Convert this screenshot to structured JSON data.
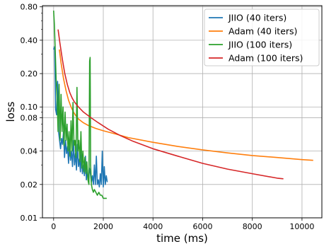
{
  "chart_data": {
    "type": "line",
    "title": "",
    "xlabel": "time (ms)",
    "ylabel": "loss",
    "xlim": [
      -450,
      10800
    ],
    "ylim": [
      0.01,
      0.82
    ],
    "yscale": "log",
    "grid": true,
    "legend_position": "top-right",
    "x_ticks": [
      0,
      2000,
      4000,
      6000,
      8000,
      10000
    ],
    "x_tick_labels": [
      "0",
      "2000",
      "4000",
      "6000",
      "8000",
      "10000"
    ],
    "y_ticks": [
      0.01,
      0.02,
      0.04,
      0.08,
      0.1,
      0.2,
      0.4,
      0.8
    ],
    "y_tick_labels": [
      "0.01",
      "0.02",
      "0.04",
      "0.08",
      "0.10",
      "0.20",
      "0.40",
      "0.80"
    ],
    "series": [
      {
        "name": "JIIO (40 iters)",
        "color": "#1f77b4",
        "x": [
          0,
          40,
          80,
          120,
          160,
          200,
          240,
          280,
          320,
          360,
          400,
          440,
          480,
          520,
          560,
          600,
          640,
          680,
          720,
          760,
          800,
          840,
          880,
          920,
          960,
          1000,
          1040,
          1080,
          1120,
          1160,
          1200,
          1240,
          1280,
          1320,
          1360,
          1400,
          1440,
          1480,
          1520,
          1560,
          1600,
          1640,
          1680,
          1720,
          1760,
          1800,
          1840,
          1880,
          1920,
          1960,
          2000,
          2040,
          2080,
          2120,
          2160
        ],
        "y": [
          0.33,
          0.35,
          0.095,
          0.085,
          0.17,
          0.06,
          0.05,
          0.042,
          0.052,
          0.046,
          0.06,
          0.035,
          0.05,
          0.038,
          0.044,
          0.031,
          0.048,
          0.033,
          0.04,
          0.029,
          0.05,
          0.03,
          0.038,
          0.027,
          0.046,
          0.029,
          0.034,
          0.026,
          0.04,
          0.025,
          0.03,
          0.024,
          0.036,
          0.022,
          0.027,
          0.021,
          0.028,
          0.025,
          0.021,
          0.024,
          0.02,
          0.03,
          0.02,
          0.036,
          0.02,
          0.022,
          0.019,
          0.025,
          0.02,
          0.04,
          0.019,
          0.029,
          0.02,
          0.024,
          0.021
        ]
      },
      {
        "name": "Adam (40 iters)",
        "color": "#ff7f0e",
        "x": [
          230,
          300,
          400,
          500,
          600,
          700,
          800,
          900,
          1000,
          1200,
          1400,
          1700,
          2000,
          2500,
          3000,
          4000,
          5000,
          6000,
          7000,
          8000,
          9000,
          10000,
          10450
        ],
        "y": [
          0.33,
          0.25,
          0.18,
          0.14,
          0.115,
          0.1,
          0.09,
          0.083,
          0.078,
          0.072,
          0.068,
          0.064,
          0.061,
          0.057,
          0.053,
          0.048,
          0.044,
          0.041,
          0.0385,
          0.0365,
          0.035,
          0.0335,
          0.033
        ]
      },
      {
        "name": "JIIO (100 iters)",
        "color": "#2ca02c",
        "x": [
          0,
          30,
          60,
          100,
          140,
          180,
          220,
          260,
          300,
          340,
          380,
          420,
          460,
          500,
          540,
          580,
          620,
          660,
          700,
          740,
          780,
          820,
          860,
          900,
          940,
          980,
          1020,
          1060,
          1100,
          1140,
          1180,
          1220,
          1260,
          1300,
          1340,
          1380,
          1420,
          1450,
          1470,
          1490,
          1520,
          1560,
          1600,
          1640,
          1700,
          1760,
          1820,
          1880,
          1940,
          2000,
          2060,
          2100,
          2140
        ],
        "y": [
          0.74,
          0.55,
          0.35,
          0.18,
          0.12,
          0.06,
          0.16,
          0.05,
          0.13,
          0.06,
          0.1,
          0.045,
          0.09,
          0.05,
          0.07,
          0.04,
          0.06,
          0.036,
          0.075,
          0.04,
          0.11,
          0.045,
          0.05,
          0.035,
          0.15,
          0.04,
          0.05,
          0.032,
          0.06,
          0.028,
          0.04,
          0.026,
          0.035,
          0.025,
          0.032,
          0.022,
          0.02,
          0.26,
          0.28,
          0.03,
          0.02,
          0.018,
          0.017,
          0.018,
          0.017,
          0.016,
          0.017,
          0.016,
          0.016,
          0.015,
          0.015,
          0.015,
          0.015
        ]
      },
      {
        "name": "Adam (100 iters)",
        "color": "#d62728",
        "x": [
          180,
          250,
          350,
          450,
          550,
          650,
          750,
          850,
          1000,
          1200,
          1500,
          1800,
          2200,
          2700,
          3200,
          4000,
          5000,
          6000,
          7000,
          8000,
          9000,
          9250
        ],
        "y": [
          0.5,
          0.38,
          0.27,
          0.2,
          0.16,
          0.135,
          0.12,
          0.11,
          0.1,
          0.09,
          0.08,
          0.072,
          0.063,
          0.055,
          0.049,
          0.042,
          0.036,
          0.031,
          0.0275,
          0.025,
          0.0228,
          0.0225
        ]
      }
    ]
  }
}
